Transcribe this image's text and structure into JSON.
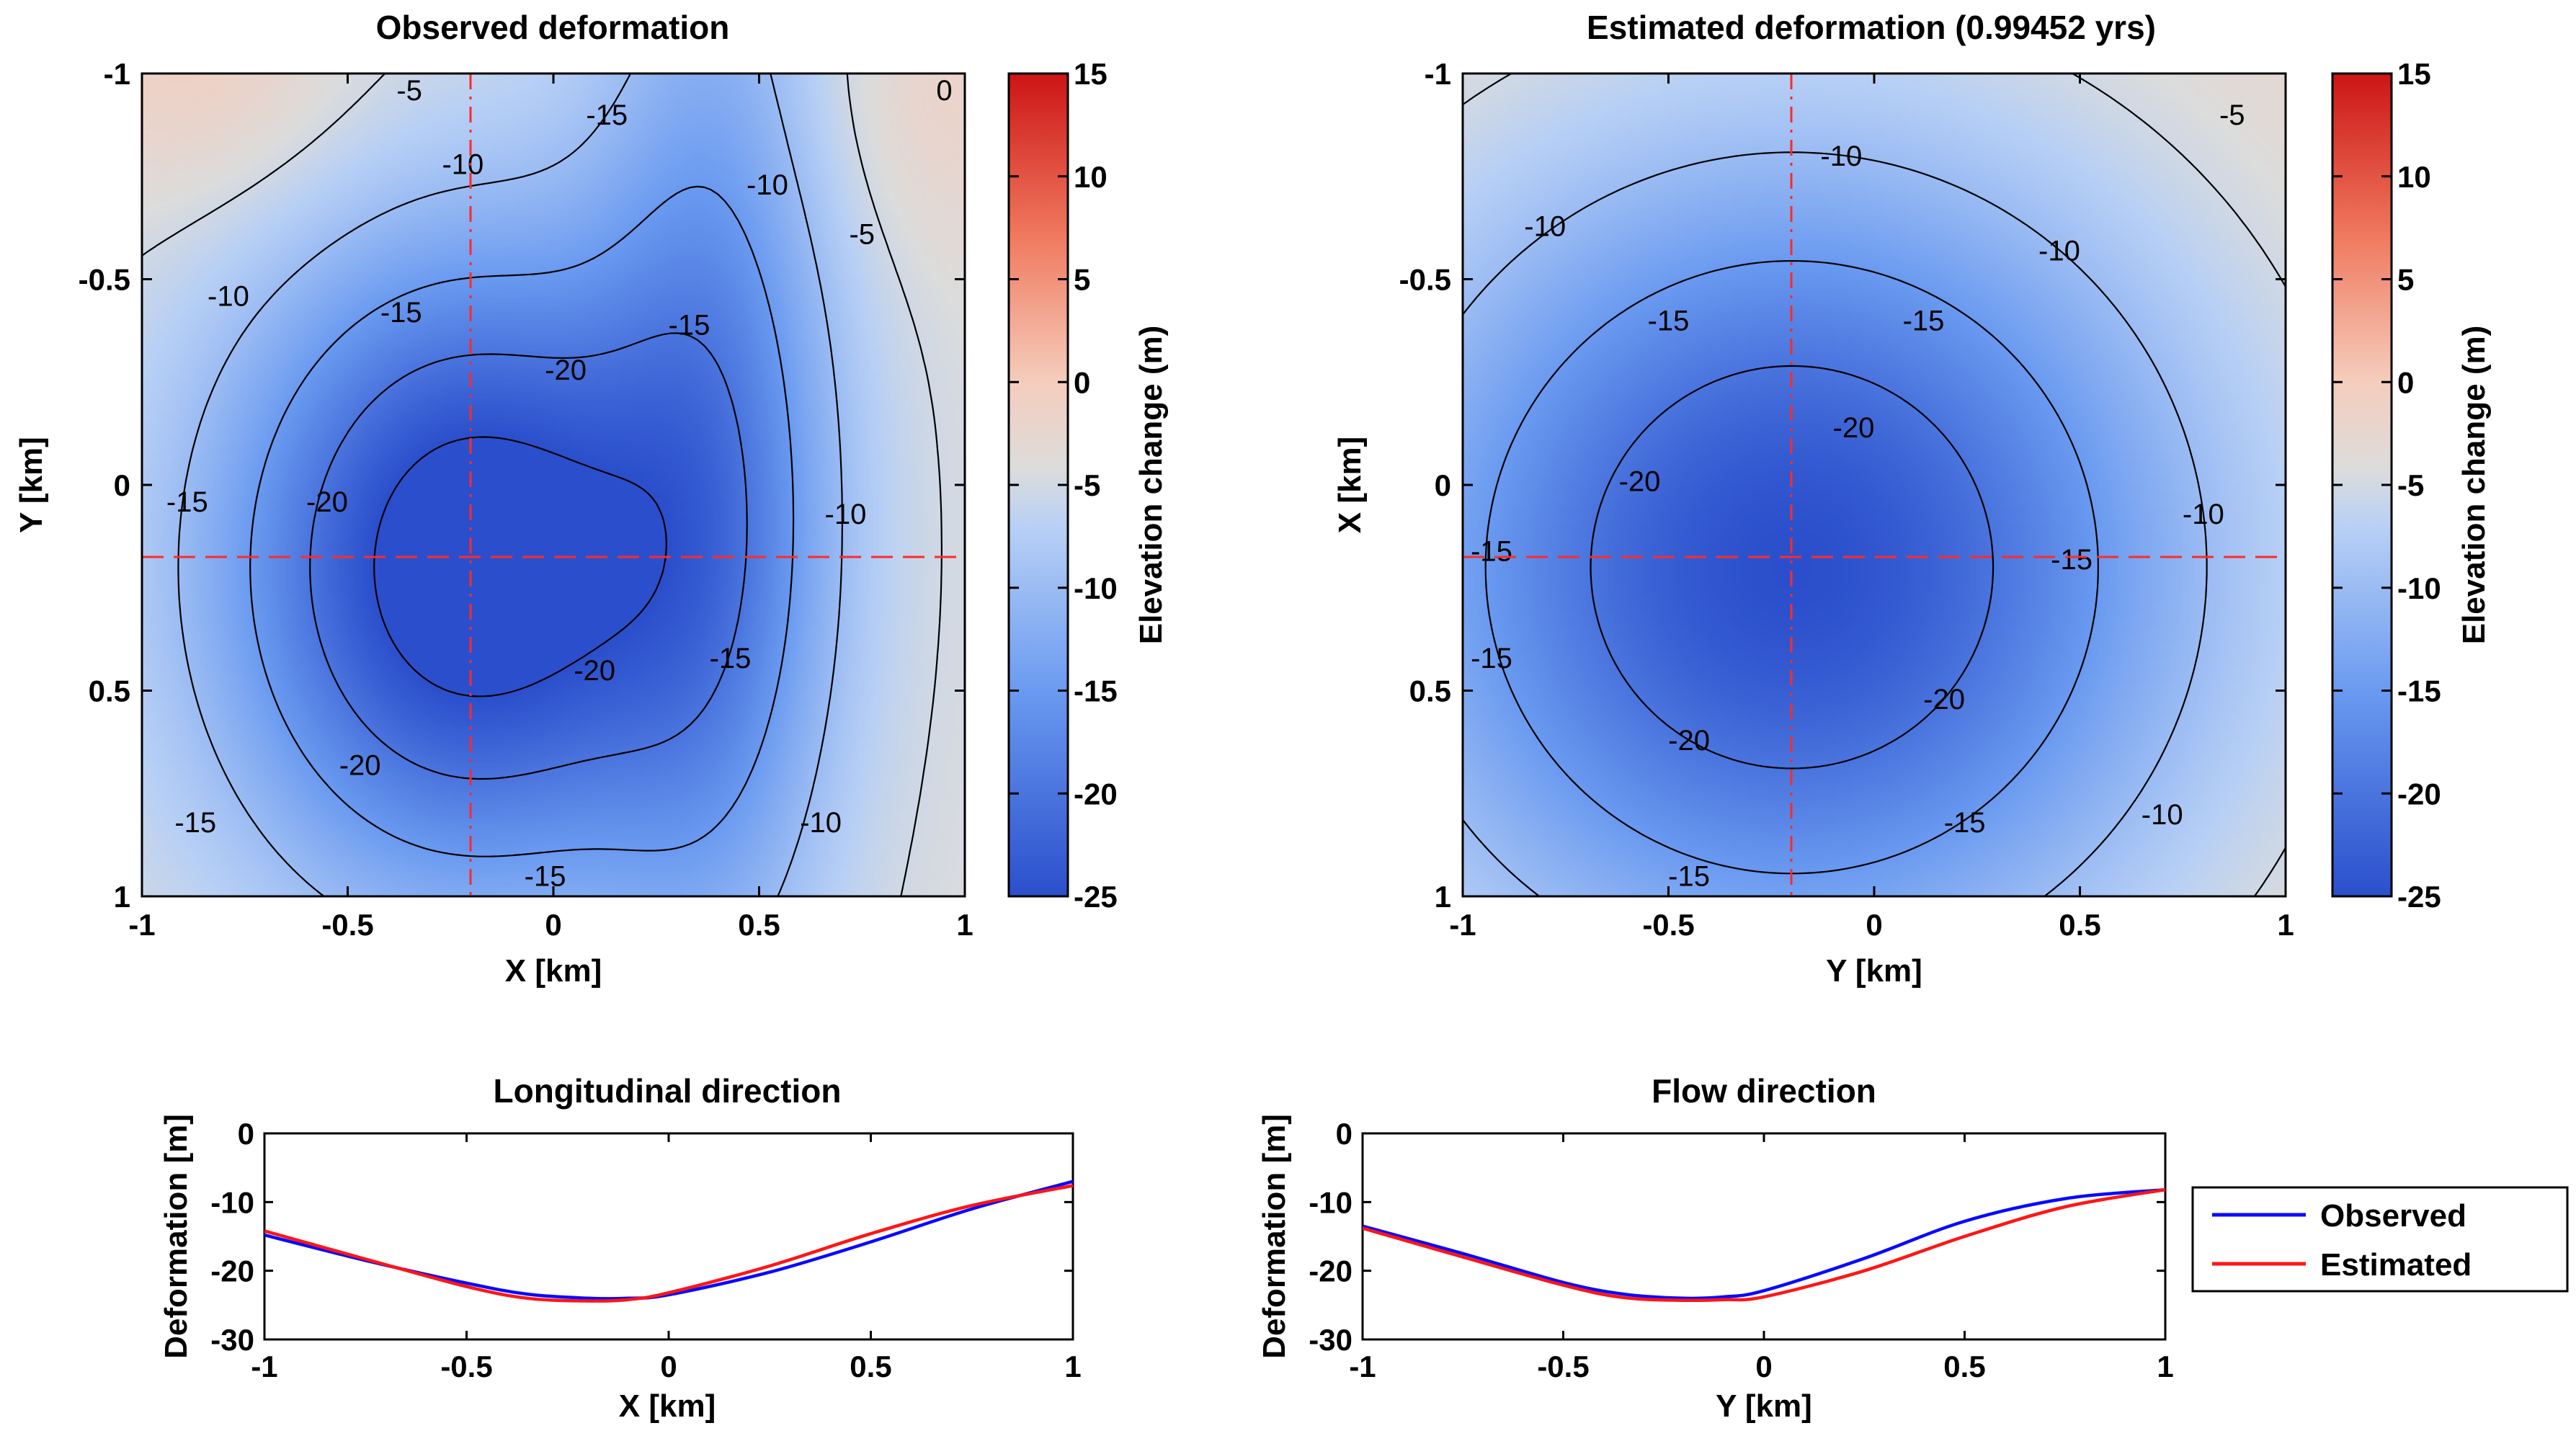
{
  "colors": {
    "low": "#2b4fcc",
    "mid": "#dcdcdc",
    "high": "#cc1515",
    "guide": "#ff2a2a",
    "observed": "#0a0aff",
    "estimated": "#ff1515"
  },
  "chart_data": [
    {
      "id": "observed",
      "type": "heatmap",
      "title": "Observed deformation",
      "xlabel": "X [km]",
      "ylabel": "Y [km]",
      "xlim": [
        -1,
        1
      ],
      "ylim": [
        -1,
        1
      ],
      "y_reversed": true,
      "xticks": [
        "-1",
        "-0.5",
        "0",
        "0.5",
        "1"
      ],
      "yticks": [
        "-1",
        "-0.5",
        "0",
        "0.5",
        "1"
      ],
      "contour_levels": [
        -25,
        -20,
        -15,
        -10,
        -5,
        0
      ],
      "guide_x": -0.2,
      "guide_y": 0.18,
      "contour_labels": [
        {
          "text": "-5",
          "x": -0.35,
          "y": -0.96
        },
        {
          "text": "0",
          "x": 0.95,
          "y": -0.96
        },
        {
          "text": "-10",
          "x": -0.22,
          "y": -0.78
        },
        {
          "text": "-15",
          "x": 0.13,
          "y": -0.9
        },
        {
          "text": "-10",
          "x": 0.52,
          "y": -0.73
        },
        {
          "text": "-5",
          "x": 0.75,
          "y": -0.61
        },
        {
          "text": "-10",
          "x": -0.79,
          "y": -0.46
        },
        {
          "text": "-15",
          "x": -0.37,
          "y": -0.42
        },
        {
          "text": "-15",
          "x": 0.33,
          "y": -0.39
        },
        {
          "text": "-20",
          "x": 0.03,
          "y": -0.28
        },
        {
          "text": "-20",
          "x": -0.55,
          "y": 0.04
        },
        {
          "text": "-15",
          "x": -0.89,
          "y": 0.04
        },
        {
          "text": "-10",
          "x": 0.71,
          "y": 0.07
        },
        {
          "text": "-15",
          "x": 0.43,
          "y": 0.42
        },
        {
          "text": "-20",
          "x": 0.1,
          "y": 0.45
        },
        {
          "text": "-20",
          "x": -0.47,
          "y": 0.68
        },
        {
          "text": "-15",
          "x": -0.87,
          "y": 0.82
        },
        {
          "text": "-10",
          "x": 0.65,
          "y": 0.82
        },
        {
          "text": "-15",
          "x": -0.02,
          "y": 0.95
        }
      ]
    },
    {
      "id": "estimated",
      "type": "heatmap",
      "title": "Estimated deformation (0.99452 yrs)",
      "xlabel": "Y [km]",
      "ylabel": "X [km]",
      "xlim": [
        -1,
        1
      ],
      "ylim": [
        -1,
        1
      ],
      "y_reversed": true,
      "xticks": [
        "-1",
        "-0.5",
        "0",
        "0.5",
        "1"
      ],
      "yticks": [
        "-1",
        "-0.5",
        "0",
        "0.5",
        "1"
      ],
      "contour_levels": [
        -25,
        -20,
        -15,
        -10,
        -5,
        0
      ],
      "guide_x": -0.2,
      "guide_y": 0.18,
      "contour_labels": [
        {
          "text": "-5",
          "x": 0.87,
          "y": -0.9
        },
        {
          "text": "-10",
          "x": -0.08,
          "y": -0.8
        },
        {
          "text": "-10",
          "x": -0.8,
          "y": -0.63
        },
        {
          "text": "-10",
          "x": 0.45,
          "y": -0.57
        },
        {
          "text": "-15",
          "x": -0.5,
          "y": -0.4
        },
        {
          "text": "-15",
          "x": 0.12,
          "y": -0.4
        },
        {
          "text": "-20",
          "x": -0.05,
          "y": -0.14
        },
        {
          "text": "-20",
          "x": -0.57,
          "y": -0.01
        },
        {
          "text": "-10",
          "x": 0.8,
          "y": 0.07
        },
        {
          "text": "-15",
          "x": -0.93,
          "y": 0.16
        },
        {
          "text": "-15",
          "x": 0.48,
          "y": 0.18
        },
        {
          "text": "-15",
          "x": -0.93,
          "y": 0.42
        },
        {
          "text": "-20",
          "x": 0.17,
          "y": 0.52
        },
        {
          "text": "-20",
          "x": -0.45,
          "y": 0.62
        },
        {
          "text": "-15",
          "x": 0.22,
          "y": 0.82
        },
        {
          "text": "-10",
          "x": 0.7,
          "y": 0.8
        },
        {
          "text": "-15",
          "x": -0.45,
          "y": 0.95
        }
      ]
    },
    {
      "id": "colorbar",
      "type": "colorbar",
      "label": "Elevation change (m)",
      "range": [
        -25,
        15
      ],
      "ticks": [
        "15",
        "10",
        "5",
        "0",
        "-5",
        "-10",
        "-15",
        "-20",
        "-25"
      ]
    },
    {
      "id": "longitudinal",
      "type": "line",
      "title": "Longitudinal direction",
      "xlabel": "X [km]",
      "ylabel": "Deformation [m]",
      "xlim": [
        -1,
        1
      ],
      "ylim": [
        -30,
        0
      ],
      "xticks": [
        "-1",
        "-0.5",
        "0",
        "0.5",
        "1"
      ],
      "yticks": [
        "0",
        "-10",
        "-20",
        "-30"
      ],
      "x": [
        -1,
        -0.75,
        -0.5,
        -0.35,
        -0.2,
        -0.1,
        0,
        0.25,
        0.5,
        0.75,
        1
      ],
      "series": [
        {
          "name": "Observed",
          "values": [
            -14.8,
            -18.5,
            -21.8,
            -23.4,
            -24.0,
            -24.0,
            -23.5,
            -20.2,
            -15.8,
            -11.0,
            -7.0
          ]
        },
        {
          "name": "Estimated",
          "values": [
            -14.2,
            -18.3,
            -22.3,
            -24.0,
            -24.4,
            -24.2,
            -23.2,
            -19.3,
            -14.6,
            -10.5,
            -7.6
          ]
        }
      ]
    },
    {
      "id": "flow",
      "type": "line",
      "title": "Flow direction",
      "xlabel": "Y [km]",
      "ylabel": "Deformation [m]",
      "xlim": [
        -1,
        1
      ],
      "ylim": [
        -30,
        0
      ],
      "xticks": [
        "-1",
        "-0.5",
        "0",
        "0.5",
        "1"
      ],
      "yticks": [
        "0",
        "-10",
        "-20",
        "-30"
      ],
      "x": [
        -1,
        -0.75,
        -0.5,
        -0.35,
        -0.2,
        -0.1,
        0,
        0.25,
        0.5,
        0.75,
        1
      ],
      "series": [
        {
          "name": "Observed",
          "values": [
            -13.5,
            -17.5,
            -21.7,
            -23.4,
            -24.0,
            -23.8,
            -22.9,
            -18.2,
            -12.8,
            -9.5,
            -8.2
          ]
        },
        {
          "name": "Estimated",
          "values": [
            -13.8,
            -18.0,
            -22.1,
            -23.9,
            -24.3,
            -24.2,
            -23.8,
            -20.0,
            -15.0,
            -10.7,
            -8.2
          ]
        }
      ]
    }
  ],
  "legend": {
    "observed": "Observed",
    "estimated": "Estimated"
  }
}
